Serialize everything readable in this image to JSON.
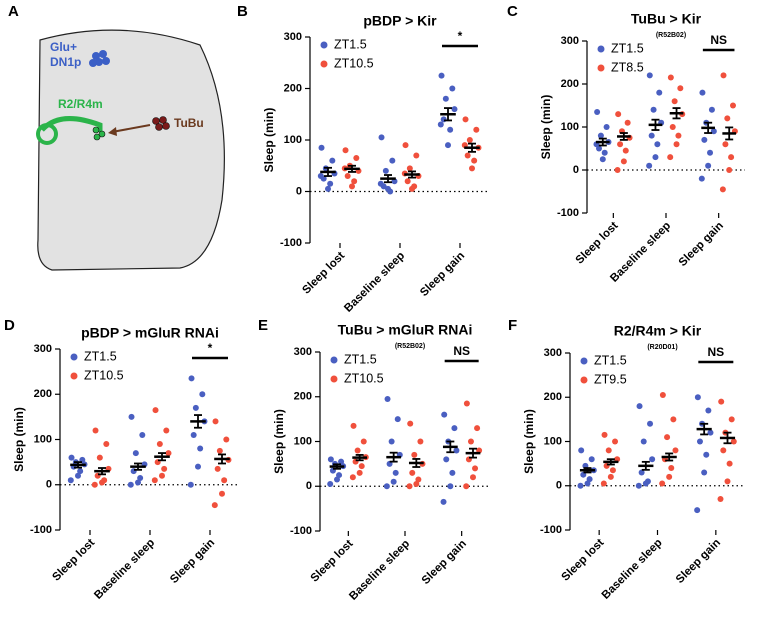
{
  "diagram": {
    "label": "A",
    "cluster_label_1": "Glu+",
    "cluster_label_2": "DN1p",
    "neuron_label": "R2/R4m",
    "input_label": "TuBu"
  },
  "chart_data": [
    {
      "type": "strip",
      "label": "B",
      "title": "pBDP > Kir",
      "ylabel": "Sleep (min)",
      "categories": [
        "Sleep lost",
        "Baseline sleep",
        "Sleep gain"
      ],
      "ylim": [
        -100,
        300
      ],
      "yticks": [
        -100,
        0,
        100,
        200,
        300
      ],
      "significance": {
        "category": "Sleep gain",
        "label": "*"
      },
      "series": [
        {
          "name": "ZT1.5",
          "color": "#4a5fc1",
          "values": [
            38,
            25,
            150
          ],
          "errors": [
            8,
            7,
            12
          ],
          "points": [
            [
              85,
              60,
              45,
              35,
              25,
              15,
              5,
              30
            ],
            [
              105,
              60,
              40,
              20,
              10,
              0,
              5,
              15
            ],
            [
              225,
              200,
              180,
              160,
              140,
              120,
              90,
              130
            ]
          ]
        },
        {
          "name": "ZT10.5",
          "color": "#f0503c",
          "values": [
            44,
            33,
            85
          ],
          "errors": [
            6,
            6,
            8
          ],
          "points": [
            [
              80,
              65,
              50,
              40,
              30,
              20,
              10,
              45
            ],
            [
              90,
              70,
              45,
              30,
              20,
              10,
              5,
              35
            ],
            [
              140,
              120,
              100,
              85,
              70,
              60,
              45,
              90
            ]
          ]
        }
      ]
    },
    {
      "type": "strip",
      "label": "C",
      "title": "TuBu > Kir",
      "subtitle": "(R52B02)",
      "ylabel": "Sleep (min)",
      "categories": [
        "Sleep lost",
        "Baseline sleep",
        "Sleep gain"
      ],
      "ylim": [
        -100,
        300
      ],
      "yticks": [
        -100,
        0,
        100,
        200,
        300
      ],
      "significance": {
        "category": "Sleep gain",
        "label": "NS"
      },
      "series": [
        {
          "name": "ZT1.5",
          "color": "#4a5fc1",
          "values": [
            65,
            105,
            98
          ],
          "errors": [
            8,
            12,
            12
          ],
          "points": [
            [
              135,
              100,
              80,
              65,
              50,
              40,
              25,
              60
            ],
            [
              220,
              180,
              140,
              110,
              80,
              60,
              30,
              10
            ],
            [
              180,
              140,
              110,
              90,
              70,
              40,
              10,
              -20
            ]
          ]
        },
        {
          "name": "ZT8.5",
          "color": "#f0503c",
          "values": [
            78,
            132,
            85
          ],
          "errors": [
            8,
            12,
            14
          ],
          "points": [
            [
              130,
              110,
              90,
              75,
              60,
              45,
              20,
              0
            ],
            [
              215,
              190,
              160,
              130,
              100,
              80,
              60,
              30
            ],
            [
              220,
              150,
              120,
              90,
              60,
              30,
              0,
              -45
            ]
          ]
        }
      ]
    },
    {
      "type": "strip",
      "label": "D",
      "title": "pBDP > mGluR RNAi",
      "ylabel": "Sleep (min)",
      "categories": [
        "Sleep lost",
        "Baseline sleep",
        "Sleep gain"
      ],
      "ylim": [
        -100,
        300
      ],
      "yticks": [
        -100,
        0,
        100,
        200,
        300
      ],
      "significance": {
        "category": "Sleep gain",
        "label": "*"
      },
      "series": [
        {
          "name": "ZT1.5",
          "color": "#4a5fc1",
          "values": [
            44,
            40,
            140
          ],
          "errors": [
            6,
            7,
            14
          ],
          "points": [
            [
              60,
              55,
              50,
              45,
              40,
              30,
              20,
              10
            ],
            [
              150,
              110,
              70,
              45,
              30,
              15,
              5,
              0
            ],
            [
              235,
              200,
              170,
              140,
              110,
              80,
              40,
              0
            ]
          ]
        },
        {
          "name": "ZT10.5",
          "color": "#f0503c",
          "values": [
            30,
            62,
            57
          ],
          "errors": [
            7,
            8,
            10
          ],
          "points": [
            [
              120,
              90,
              60,
              35,
              20,
              10,
              5,
              0
            ],
            [
              165,
              120,
              90,
              70,
              50,
              35,
              20,
              10
            ],
            [
              140,
              100,
              75,
              55,
              35,
              10,
              -20,
              -45
            ]
          ]
        }
      ]
    },
    {
      "type": "strip",
      "label": "E",
      "title": "TuBu > mGluR RNAi",
      "subtitle": "(R52B02)",
      "ylabel": "Sleep (min)",
      "categories": [
        "Sleep lost",
        "Baseline sleep",
        "Sleep gain"
      ],
      "ylim": [
        -100,
        300
      ],
      "yticks": [
        -100,
        0,
        100,
        200,
        300
      ],
      "significance": {
        "category": "Sleep gain",
        "label": "NS"
      },
      "series": [
        {
          "name": "ZT1.5",
          "color": "#4a5fc1",
          "values": [
            44,
            65,
            88
          ],
          "errors": [
            5,
            10,
            12
          ],
          "points": [
            [
              60,
              55,
              50,
              45,
              35,
              25,
              15,
              5
            ],
            [
              195,
              150,
              100,
              70,
              50,
              30,
              10,
              0
            ],
            [
              160,
              130,
              100,
              80,
              60,
              30,
              0,
              -35
            ]
          ]
        },
        {
          "name": "ZT10.5",
          "color": "#f0503c",
          "values": [
            64,
            52,
            74
          ],
          "errors": [
            6,
            9,
            10
          ],
          "points": [
            [
              135,
              100,
              80,
              65,
              55,
              45,
              30,
              20
            ],
            [
              140,
              100,
              70,
              50,
              30,
              15,
              5,
              0
            ],
            [
              185,
              130,
              100,
              80,
              60,
              40,
              20,
              0
            ]
          ]
        }
      ]
    },
    {
      "type": "strip",
      "label": "F",
      "title": "R2/R4m > Kir",
      "subtitle": "(R20D01)",
      "ylabel": "Sleep (min)",
      "categories": [
        "Sleep lost",
        "Baseline sleep",
        "Sleep gain"
      ],
      "ylim": [
        -100,
        300
      ],
      "yticks": [
        -100,
        0,
        100,
        200,
        300
      ],
      "significance": {
        "category": "Sleep gain",
        "label": "NS"
      },
      "series": [
        {
          "name": "ZT1.5",
          "color": "#4a5fc1",
          "values": [
            35,
            45,
            128
          ],
          "errors": [
            5,
            9,
            12
          ],
          "points": [
            [
              80,
              60,
              45,
              35,
              25,
              15,
              5,
              0
            ],
            [
              180,
              140,
              100,
              60,
              30,
              10,
              5,
              0
            ],
            [
              200,
              170,
              140,
              120,
              100,
              70,
              30,
              -55
            ]
          ]
        },
        {
          "name": "ZT9.5",
          "color": "#f0503c",
          "values": [
            54,
            65,
            108
          ],
          "errors": [
            6,
            8,
            12
          ],
          "points": [
            [
              115,
              100,
              80,
              60,
              45,
              35,
              20,
              5
            ],
            [
              205,
              150,
              110,
              80,
              60,
              40,
              20,
              5
            ],
            [
              190,
              150,
              120,
              100,
              80,
              50,
              10,
              -30
            ]
          ]
        }
      ]
    }
  ]
}
